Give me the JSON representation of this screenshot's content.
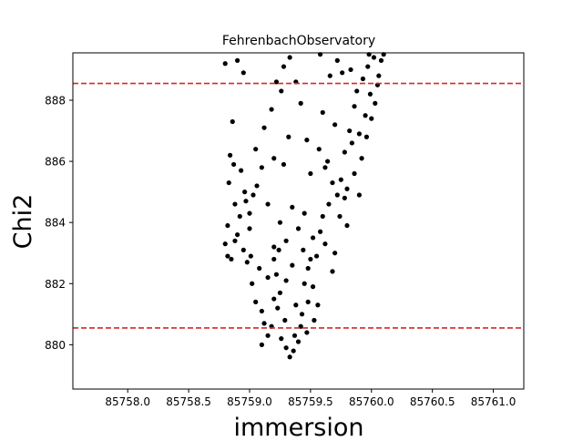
{
  "chart_data": {
    "type": "scatter",
    "title": "FehrenbachObservatory",
    "xlabel": "immersion",
    "ylabel": "Chi2",
    "xlim": [
      85757.55,
      85761.25
    ],
    "ylim": [
      878.55,
      889.55
    ],
    "x_ticks": [
      85758.0,
      85758.5,
      85759.0,
      85759.5,
      85760.0,
      85760.5,
      85761.0
    ],
    "x_tick_labels": [
      "85758.0",
      "85758.5",
      "85759.0",
      "85759.5",
      "85760.0",
      "85760.5",
      "85761.0"
    ],
    "y_ticks": [
      880,
      882,
      884,
      886,
      888
    ],
    "y_tick_labels": [
      "880",
      "882",
      "884",
      "886",
      "888"
    ],
    "hlines": [
      {
        "y": 888.55,
        "color": "#d62728",
        "style": "dashed"
      },
      {
        "y": 880.55,
        "color": "#d62728",
        "style": "dashed"
      }
    ],
    "series": [
      {
        "color": "#000000",
        "points": [
          [
            85758.8,
            883.3
          ],
          [
            85758.82,
            883.9
          ],
          [
            85758.85,
            882.8
          ],
          [
            85758.88,
            884.6
          ],
          [
            85758.9,
            883.6
          ],
          [
            85758.83,
            885.3
          ],
          [
            85758.87,
            885.9
          ],
          [
            85758.92,
            884.2
          ],
          [
            85758.95,
            883.1
          ],
          [
            85758.98,
            882.7
          ],
          [
            85759.0,
            883.8
          ],
          [
            85758.86,
            887.3
          ],
          [
            85758.8,
            889.2
          ],
          [
            85758.9,
            889.3
          ],
          [
            85758.95,
            888.9
          ],
          [
            85759.03,
            884.9
          ],
          [
            85759.06,
            885.2
          ],
          [
            85758.93,
            885.7
          ],
          [
            85758.97,
            884.7
          ],
          [
            85759.01,
            882.9
          ],
          [
            85759.02,
            882.0
          ],
          [
            85759.05,
            881.4
          ],
          [
            85759.08,
            882.5
          ],
          [
            85759.1,
            881.1
          ],
          [
            85759.12,
            880.7
          ],
          [
            85759.15,
            880.3
          ],
          [
            85759.1,
            880.0
          ],
          [
            85759.18,
            880.6
          ],
          [
            85759.2,
            881.5
          ],
          [
            85759.22,
            882.3
          ],
          [
            85759.24,
            883.1
          ],
          [
            85759.26,
            880.2
          ],
          [
            85759.3,
            879.9
          ],
          [
            85759.33,
            879.6
          ],
          [
            85759.36,
            879.8
          ],
          [
            85759.4,
            880.1
          ],
          [
            85759.42,
            880.6
          ],
          [
            85759.38,
            881.3
          ],
          [
            85759.45,
            882.0
          ],
          [
            85759.48,
            881.4
          ],
          [
            85759.5,
            882.8
          ],
          [
            85759.52,
            883.5
          ],
          [
            85759.55,
            882.9
          ],
          [
            85759.58,
            883.7
          ],
          [
            85759.6,
            884.2
          ],
          [
            85759.62,
            883.3
          ],
          [
            85759.65,
            884.6
          ],
          [
            85759.68,
            882.4
          ],
          [
            85759.7,
            883.0
          ],
          [
            85759.72,
            884.9
          ],
          [
            85759.75,
            885.4
          ],
          [
            85759.78,
            886.3
          ],
          [
            85759.8,
            885.1
          ],
          [
            85759.82,
            887.0
          ],
          [
            85759.84,
            886.6
          ],
          [
            85759.86,
            887.8
          ],
          [
            85759.88,
            888.3
          ],
          [
            85759.9,
            886.9
          ],
          [
            85759.93,
            888.7
          ],
          [
            85759.95,
            887.5
          ],
          [
            85759.97,
            889.1
          ],
          [
            85759.99,
            888.2
          ],
          [
            85760.02,
            889.4
          ],
          [
            85760.05,
            888.5
          ],
          [
            85760.08,
            889.3
          ],
          [
            85759.76,
            888.9
          ],
          [
            85759.72,
            889.3
          ],
          [
            85759.83,
            889.0
          ],
          [
            85759.66,
            888.8
          ],
          [
            85759.6,
            887.6
          ],
          [
            85759.7,
            887.2
          ],
          [
            85759.57,
            886.4
          ],
          [
            85759.62,
            885.8
          ],
          [
            85759.5,
            885.6
          ],
          [
            85759.45,
            884.3
          ],
          [
            85759.4,
            883.8
          ],
          [
            85759.35,
            884.5
          ],
          [
            85759.3,
            883.4
          ],
          [
            85759.25,
            884.0
          ],
          [
            85759.2,
            883.2
          ],
          [
            85759.15,
            884.6
          ],
          [
            85759.1,
            885.8
          ],
          [
            85759.05,
            886.4
          ],
          [
            85759.12,
            887.1
          ],
          [
            85759.18,
            887.7
          ],
          [
            85759.22,
            888.6
          ],
          [
            85759.28,
            889.1
          ],
          [
            85759.33,
            889.4
          ],
          [
            85759.26,
            888.3
          ],
          [
            85759.38,
            888.6
          ],
          [
            85759.32,
            886.8
          ],
          [
            85759.28,
            885.9
          ],
          [
            85759.2,
            886.1
          ],
          [
            85759.42,
            887.9
          ],
          [
            85759.47,
            886.7
          ],
          [
            85759.35,
            882.6
          ],
          [
            85759.3,
            882.1
          ],
          [
            85759.25,
            881.7
          ],
          [
            85759.2,
            882.8
          ],
          [
            85759.15,
            882.2
          ],
          [
            85759.44,
            883.1
          ],
          [
            85759.48,
            882.5
          ],
          [
            85759.52,
            881.9
          ],
          [
            85759.56,
            881.3
          ],
          [
            85759.53,
            880.8
          ],
          [
            85759.47,
            880.4
          ],
          [
            85759.43,
            881.0
          ],
          [
            85759.37,
            880.3
          ],
          [
            85759.29,
            880.8
          ],
          [
            85759.23,
            881.2
          ],
          [
            85758.84,
            886.2
          ],
          [
            85758.96,
            885.0
          ],
          [
            85759.0,
            884.3
          ],
          [
            85758.88,
            883.4
          ],
          [
            85758.82,
            882.9
          ],
          [
            85759.64,
            886.0
          ],
          [
            85759.68,
            885.3
          ],
          [
            85759.74,
            884.2
          ],
          [
            85759.78,
            884.8
          ],
          [
            85759.8,
            883.9
          ],
          [
            85759.86,
            885.6
          ],
          [
            85759.9,
            884.9
          ],
          [
            85759.92,
            886.1
          ],
          [
            85759.96,
            886.8
          ],
          [
            85760.0,
            887.4
          ],
          [
            85760.03,
            887.9
          ],
          [
            85760.06,
            888.8
          ],
          [
            85759.98,
            889.5
          ],
          [
            85760.1,
            889.5
          ],
          [
            85759.58,
            889.5
          ]
        ]
      }
    ]
  }
}
